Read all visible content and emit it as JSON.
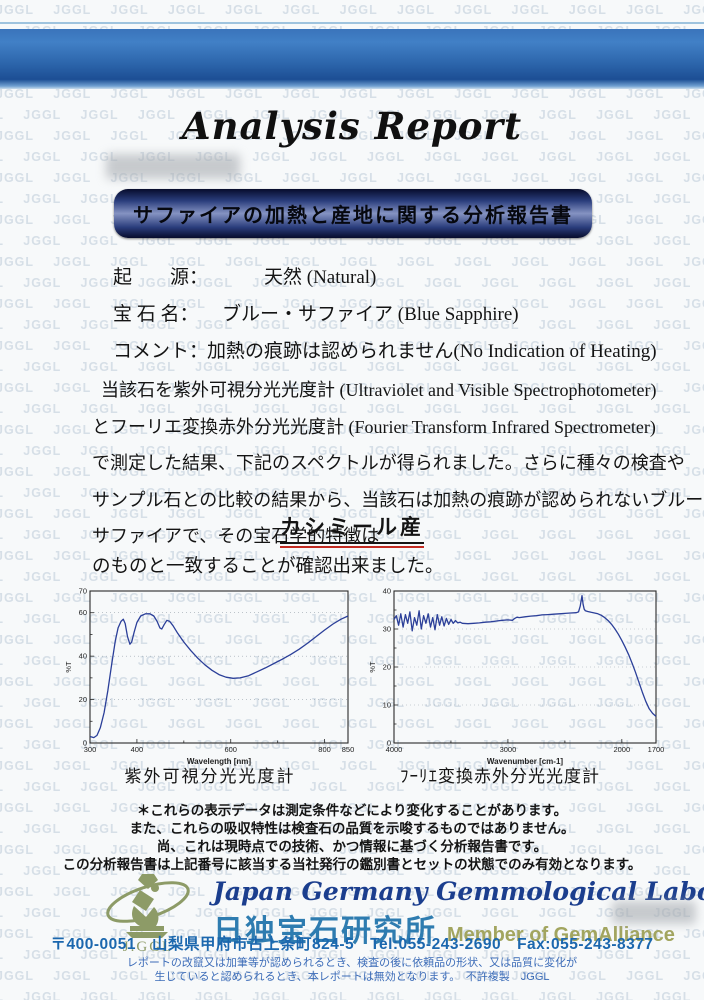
{
  "page": {
    "title": "Analysis Report",
    "watermark_text": "JGGL",
    "banner": "サファイアの加熱と産地に関する分析報告書"
  },
  "fields": {
    "origin_label": "起　　源：",
    "origin_value": "天然 (Natural)",
    "name_label": "宝 石 名：",
    "name_value": "ブルー・サファイア (Blue Sapphire)",
    "comment_label": "コメント：",
    "comment_value": "加熱の痕跡は認められません(No Indication of Heating)"
  },
  "paragraph": {
    "lines": [
      "当該石を紫外可視分光光度計 (Ultraviolet and Visible Spectrophotometer)",
      "とフーリエ変換赤外分光光度計 (Fourier Transform Infrared Spectrometer)",
      "で測定した結果、下記のスペクトルが得られました。さらに種々の検査や",
      "サンプル石との比較の結果から、当該石は加熱の痕跡が認められないブルー・",
      "サファイアで、その宝石学的特徴は"
    ]
  },
  "origin_highlight": "カシミール産",
  "confirmation": "のものと一致することが確認出来ました。",
  "chart_data": [
    {
      "type": "line",
      "title": "紫外可視分光光度計",
      "xlabel": "Wavelength [nm]",
      "ylabel": "%T",
      "xlim": [
        300,
        850
      ],
      "ylim": [
        0,
        70
      ],
      "xticks": [
        {
          "v": 300,
          "l": "300"
        },
        {
          "v": 400,
          "l": "400"
        },
        {
          "v": 500,
          "l": ""
        },
        {
          "v": 600,
          "l": "600"
        },
        {
          "v": 700,
          "l": ""
        },
        {
          "v": 800,
          "l": "800"
        },
        {
          "v": 850,
          "l": "850"
        }
      ],
      "yticks": [
        {
          "v": 0,
          "l": "0"
        },
        {
          "v": 10,
          "l": ""
        },
        {
          "v": 20,
          "l": "20"
        },
        {
          "v": 30,
          "l": ""
        },
        {
          "v": 40,
          "l": "40"
        },
        {
          "v": 50,
          "l": ""
        },
        {
          "v": 60,
          "l": "60"
        },
        {
          "v": 70,
          "l": "70"
        }
      ],
      "grid_y": [
        20,
        40,
        60
      ],
      "points": [
        [
          300,
          3
        ],
        [
          308,
          2.5
        ],
        [
          315,
          3.5
        ],
        [
          322,
          7
        ],
        [
          330,
          14
        ],
        [
          338,
          24
        ],
        [
          346,
          36
        ],
        [
          354,
          47
        ],
        [
          360,
          53
        ],
        [
          366,
          56
        ],
        [
          371,
          57
        ],
        [
          375,
          55
        ],
        [
          380,
          49
        ],
        [
          385,
          45.5
        ],
        [
          389,
          46.5
        ],
        [
          394,
          51
        ],
        [
          400,
          55.5
        ],
        [
          408,
          58.5
        ],
        [
          418,
          59.5
        ],
        [
          428,
          59.5
        ],
        [
          436,
          58.5
        ],
        [
          443,
          56
        ],
        [
          449,
          53
        ],
        [
          453,
          52.5
        ],
        [
          458,
          54.5
        ],
        [
          464,
          56.5
        ],
        [
          470,
          56
        ],
        [
          477,
          54
        ],
        [
          487,
          50.5
        ],
        [
          500,
          46.5
        ],
        [
          515,
          42.5
        ],
        [
          530,
          39
        ],
        [
          545,
          36
        ],
        [
          560,
          33.5
        ],
        [
          575,
          31.5
        ],
        [
          590,
          30.3
        ],
        [
          605,
          29.8
        ],
        [
          620,
          30
        ],
        [
          638,
          31
        ],
        [
          656,
          32.8
        ],
        [
          674,
          34.6
        ],
        [
          692,
          36.6
        ],
        [
          710,
          38.6
        ],
        [
          728,
          40.8
        ],
        [
          746,
          43.2
        ],
        [
          764,
          46
        ],
        [
          782,
          49
        ],
        [
          800,
          52
        ],
        [
          818,
          54.8
        ],
        [
          835,
          57
        ],
        [
          850,
          58.5
        ]
      ]
    },
    {
      "type": "line",
      "title": "ﾌｰﾘｴ変換赤外分光光度計",
      "xlabel": "Wavenumber [cm-1]",
      "ylabel": "%T",
      "xlim": [
        4000,
        1700
      ],
      "ylim": [
        0,
        40
      ],
      "xticks": [
        {
          "v": 4000,
          "l": "4000"
        },
        {
          "v": 3500,
          "l": ""
        },
        {
          "v": 3000,
          "l": "3000"
        },
        {
          "v": 2500,
          "l": ""
        },
        {
          "v": 2000,
          "l": "2000"
        },
        {
          "v": 1700,
          "l": "1700"
        }
      ],
      "yticks": [
        {
          "v": 0,
          "l": "0"
        },
        {
          "v": 5,
          "l": ""
        },
        {
          "v": 10,
          "l": "10"
        },
        {
          "v": 15,
          "l": ""
        },
        {
          "v": 20,
          "l": "20"
        },
        {
          "v": 25,
          "l": ""
        },
        {
          "v": 30,
          "l": "30"
        },
        {
          "v": 35,
          "l": ""
        },
        {
          "v": 40,
          "l": "40"
        }
      ],
      "grid_y": [
        10,
        20,
        30
      ],
      "points": [
        [
          4000,
          32.5
        ],
        [
          3980,
          33.5
        ],
        [
          3960,
          31
        ],
        [
          3940,
          34
        ],
        [
          3920,
          30.5
        ],
        [
          3900,
          33.8
        ],
        [
          3880,
          31.5
        ],
        [
          3860,
          34.5
        ],
        [
          3840,
          29.5
        ],
        [
          3820,
          33
        ],
        [
          3800,
          31
        ],
        [
          3780,
          34.8
        ],
        [
          3760,
          30
        ],
        [
          3740,
          33.5
        ],
        [
          3720,
          31.5
        ],
        [
          3700,
          34
        ],
        [
          3680,
          30.5
        ],
        [
          3660,
          33
        ],
        [
          3640,
          29.8
        ],
        [
          3620,
          33.8
        ],
        [
          3600,
          31
        ],
        [
          3580,
          33.2
        ],
        [
          3560,
          30.8
        ],
        [
          3540,
          32.8
        ],
        [
          3520,
          31.2
        ],
        [
          3500,
          32.5
        ],
        [
          3480,
          31.5
        ],
        [
          3460,
          32.2
        ],
        [
          3440,
          31.6
        ],
        [
          3420,
          31.8
        ],
        [
          3400,
          31.5
        ],
        [
          3350,
          31.4
        ],
        [
          3300,
          31.5
        ],
        [
          3250,
          31.6
        ],
        [
          3200,
          31.8
        ],
        [
          3150,
          31.9
        ],
        [
          3100,
          32.1
        ],
        [
          3050,
          32.3
        ],
        [
          3000,
          32.4
        ],
        [
          2960,
          32.3
        ],
        [
          2940,
          32.8
        ],
        [
          2920,
          33.1
        ],
        [
          2900,
          33
        ],
        [
          2850,
          33.2
        ],
        [
          2800,
          33.4
        ],
        [
          2750,
          33.5
        ],
        [
          2700,
          33.7
        ],
        [
          2650,
          33.8
        ],
        [
          2600,
          33.9
        ],
        [
          2550,
          34
        ],
        [
          2500,
          34.1
        ],
        [
          2450,
          34.2
        ],
        [
          2400,
          34.3
        ],
        [
          2380,
          34.5
        ],
        [
          2365,
          36
        ],
        [
          2350,
          38.8
        ],
        [
          2340,
          36.5
        ],
        [
          2330,
          35.2
        ],
        [
          2320,
          34.8
        ],
        [
          2300,
          34.6
        ],
        [
          2270,
          34.4
        ],
        [
          2240,
          34.2
        ],
        [
          2210,
          34
        ],
        [
          2180,
          33.6
        ],
        [
          2150,
          33
        ],
        [
          2120,
          32.2
        ],
        [
          2090,
          31.2
        ],
        [
          2060,
          30
        ],
        [
          2030,
          28.6
        ],
        [
          2000,
          27
        ],
        [
          1970,
          25.2
        ],
        [
          1940,
          23.2
        ],
        [
          1910,
          21
        ],
        [
          1880,
          18.6
        ],
        [
          1850,
          16
        ],
        [
          1820,
          13.4
        ],
        [
          1790,
          11
        ],
        [
          1760,
          9
        ],
        [
          1730,
          7.8
        ],
        [
          1700,
          7
        ]
      ]
    }
  ],
  "notes": {
    "lines": [
      "＊これらの表示データは測定条件などにより変化することがあります。",
      "また、これらの吸収特性は検査石の品質を示唆するものではありません。",
      "尚、これは現時点での技術、かつ情報に基づく分析報告書です。",
      "この分析報告書は上記番号に該当する当社発行の鑑別書とセットの状態でのみ有効となります。"
    ]
  },
  "footer": {
    "logo_text": "J.GGL",
    "lab_name_en": "Japan Germany Gemmological Laboratory",
    "lab_name_jp": "日独宝石研究所",
    "membership": "Member of GemAlliance",
    "address": "〒400-0051　山梨県甲府市古上条町824-5　Tel:055-243-2690　Fax:055-243-8377",
    "smallprint_lines": [
      "レポートの改竄又は加筆等が認められるとき、検査の後に依頼品の形状、又は品質に変化が",
      "生じていると認められるとき、本レポートは無効となります。　不許複製　JGGL"
    ]
  },
  "colors": {
    "top_bar_blue": "#2e6cb4",
    "banner_navy": "#0c1238",
    "curve_navy": "#2b3f99",
    "red_underline": "#c22b22",
    "lab_blue": "#1b3e8e",
    "jp_teal": "#2e7cb0",
    "olive": "#8d9b67",
    "address_blue": "#1b67ae"
  }
}
